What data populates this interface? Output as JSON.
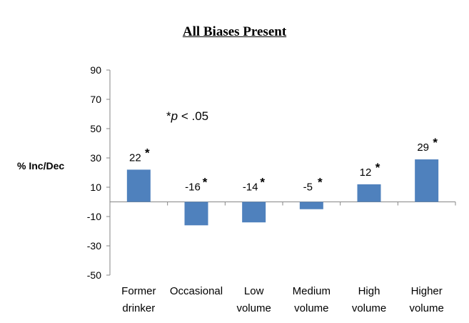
{
  "chart_data": {
    "type": "bar",
    "title": "All Biases Present",
    "ylabel": "% Inc/Dec",
    "xlabel": "",
    "annotation": {
      "star": "*",
      "p": "p",
      "text": " < .05"
    },
    "categories": [
      [
        "Former",
        "drinker"
      ],
      [
        "Occasional",
        ""
      ],
      [
        "Low",
        "volume"
      ],
      [
        "Medium",
        "volume"
      ],
      [
        "High",
        "volume"
      ],
      [
        "Higher",
        "volume"
      ]
    ],
    "values": [
      22,
      -16,
      -14,
      -5,
      12,
      29
    ],
    "value_labels": [
      "22",
      "-16",
      "-14",
      "-5",
      "12",
      "29"
    ],
    "significant": [
      true,
      true,
      true,
      true,
      true,
      true
    ],
    "significance_marker": "*",
    "ylim": [
      -50,
      90
    ],
    "yticks": [
      90,
      70,
      50,
      30,
      10,
      -10,
      -30,
      -50
    ],
    "grid": false,
    "bar_color": "#4f81bd"
  }
}
